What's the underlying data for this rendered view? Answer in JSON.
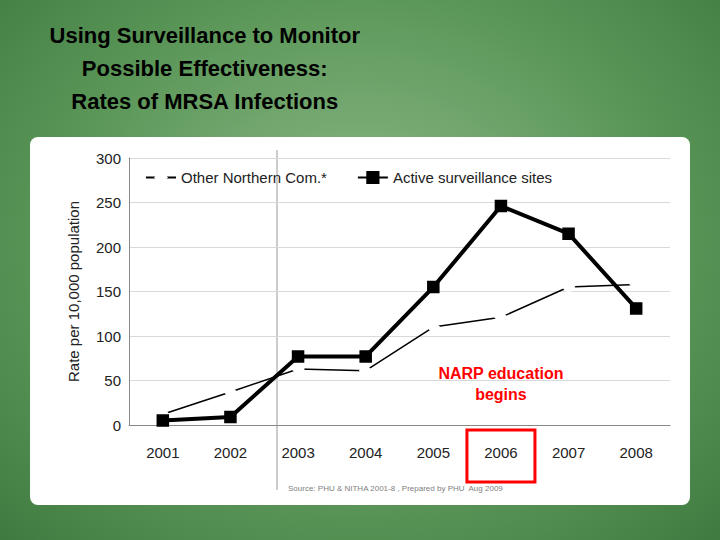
{
  "chart_data": {
    "type": "line",
    "title": "Using Surveillance to Monitor\nPossible Effectiveness:\nRates of MRSA Infections",
    "y_label": "Rate per 10,000 population",
    "categories": [
      "2001",
      "2002",
      "2003",
      "2004",
      "2005",
      "2006",
      "2007",
      "2008"
    ],
    "series": [
      {
        "name": "Other Northern Com.*",
        "color": "#000000",
        "marker": "diamond_open",
        "line_style": "solid",
        "values": [
          12,
          37,
          63,
          61,
          110,
          121,
          155,
          158
        ]
      },
      {
        "name": "Active surveillance sites",
        "color": "#000000",
        "marker": "square",
        "line_style": "solid",
        "values": [
          5,
          9,
          77,
          77,
          155,
          246,
          215,
          131
        ]
      }
    ],
    "ylim": [
      0,
      300
    ],
    "yticks": [
      0,
      50,
      100,
      150,
      200,
      250,
      300
    ],
    "grid": true,
    "legend": "top",
    "annotations": [
      {
        "text": "NARP education\nbegins",
        "x": "2006",
        "color": "#ff0000"
      },
      {
        "text": "Source: PHU & NITHA 2001-8 , Prepared by PHU  Aug 2009",
        "color": "#808080"
      }
    ]
  }
}
